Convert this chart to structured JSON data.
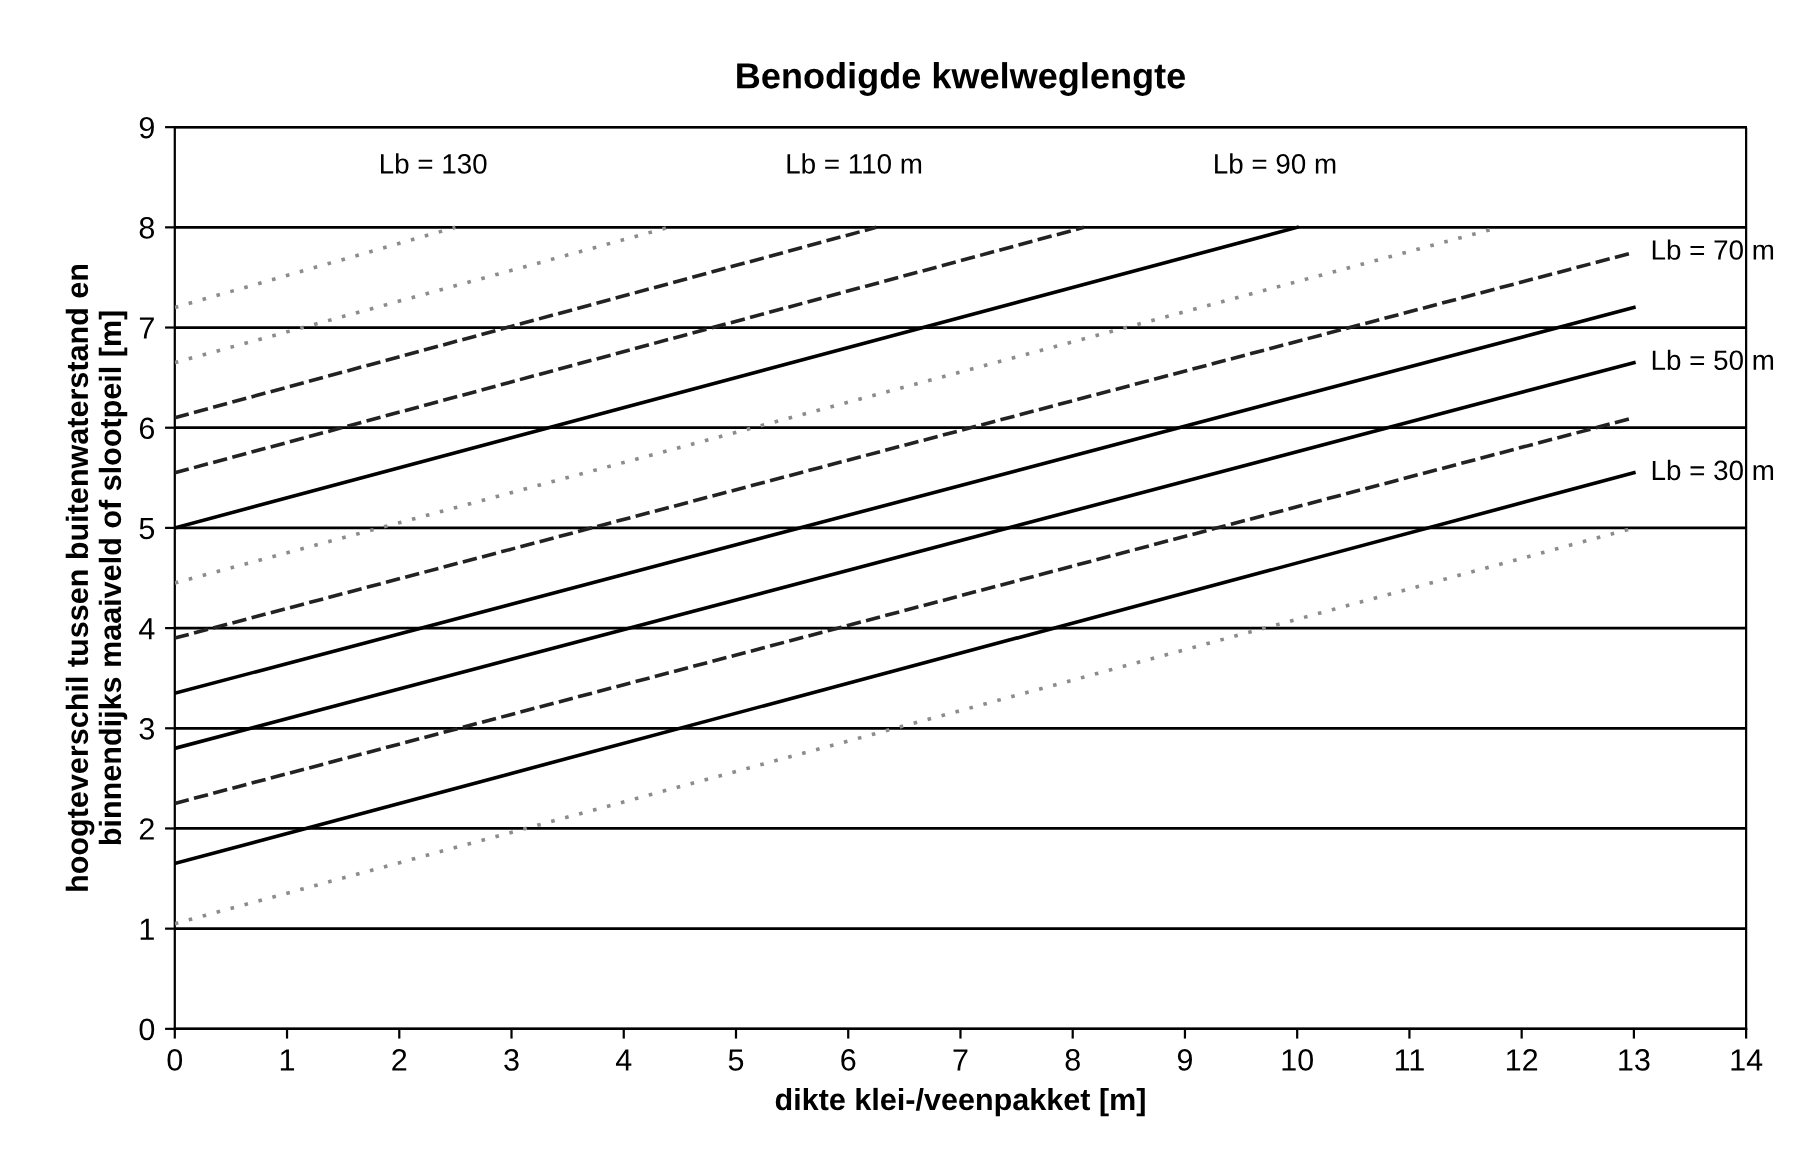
{
  "chart_data": {
    "type": "line",
    "title": "Benodigde kwelweglengte",
    "xlabel": "dikte klei-/veenpakket [m]",
    "ylabel": "hoogteverschil tussen buitenwaterstand en\nbinnendijks maaiveld of slootpeil [m]",
    "xlim": [
      0,
      14
    ],
    "ylim": [
      0,
      9
    ],
    "xticks": [
      0,
      1,
      2,
      3,
      4,
      5,
      6,
      7,
      8,
      9,
      10,
      11,
      12,
      13,
      14
    ],
    "yticks": [
      0,
      1,
      2,
      3,
      4,
      5,
      6,
      7,
      8,
      9
    ],
    "grid": "y",
    "legend": false,
    "marker": "none",
    "series": [
      {
        "x": [
          0,
          13
        ],
        "values": [
          1.05,
          5.0
        ],
        "color": "#8c8c8c",
        "line_style": "dotted"
      },
      {
        "name": "Lb = 30 m",
        "x": [
          0,
          13
        ],
        "values": [
          1.65,
          5.55
        ],
        "color": "#000000",
        "line_style": "solid"
      },
      {
        "x": [
          0,
          13
        ],
        "values": [
          2.25,
          6.1
        ],
        "color": "#222222",
        "line_style": "dashed"
      },
      {
        "name": "Lb = 50 m",
        "x": [
          0,
          13
        ],
        "values": [
          2.8,
          6.65
        ],
        "color": "#000000",
        "line_style": "solid"
      },
      {
        "x": [
          0,
          13
        ],
        "values": [
          3.35,
          7.2
        ],
        "color": "#000000",
        "line_style": "solid"
      },
      {
        "name": "Lb = 70 m",
        "x": [
          0,
          13
        ],
        "values": [
          3.9,
          7.75
        ],
        "color": "#222222",
        "line_style": "dashed"
      },
      {
        "x": [
          0,
          11.8
        ],
        "values": [
          4.45,
          8.0
        ],
        "color": "#8c8c8c",
        "line_style": "dotted"
      },
      {
        "name": "Lb = 90 m",
        "x": [
          0,
          10
        ],
        "values": [
          5.0,
          8.0
        ],
        "color": "#000000",
        "line_style": "solid"
      },
      {
        "x": [
          0,
          8.1
        ],
        "values": [
          5.55,
          8.0
        ],
        "color": "#222222",
        "line_style": "dashed"
      },
      {
        "name": "Lb = 110 m",
        "x": [
          0,
          6.25
        ],
        "values": [
          6.1,
          8.0
        ],
        "color": "#222222",
        "line_style": "dashed"
      },
      {
        "x": [
          0,
          4.4
        ],
        "values": [
          6.65,
          8.0
        ],
        "color": "#8c8c8c",
        "line_style": "dotted"
      },
      {
        "name": "Lb = 130",
        "x": [
          0,
          2.5
        ],
        "values": [
          7.2,
          8.0
        ],
        "color": "#8c8c8c",
        "line_style": "dotted"
      }
    ]
  }
}
